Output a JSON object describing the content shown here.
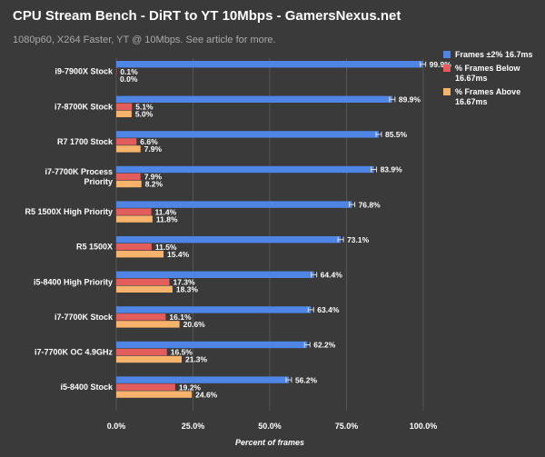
{
  "header": {
    "title": "CPU Stream Bench - DiRT to YT 10Mbps  - GamersNexus.net",
    "subtitle": "1080p60, X264 Faster, YT @ 10Mbps. See article for more."
  },
  "colors": {
    "background": "#3a3a3a",
    "grid": "#545454",
    "series": [
      "#4f86e6",
      "#e35d5d",
      "#f7b36b"
    ],
    "label": "#ffffff"
  },
  "chart_data": {
    "type": "bar",
    "orientation": "horizontal",
    "title": "CPU Stream Bench - DiRT to YT 10Mbps  - GamersNexus.net",
    "subtitle": "1080p60, X264 Faster, YT @ 10Mbps. See article for more.",
    "xlabel": "Percent of frames",
    "ylabel": "",
    "xlim": [
      0,
      100
    ],
    "xticks": [
      0,
      25,
      50,
      75,
      100
    ],
    "xtick_labels": [
      "0.0%",
      "25.0%",
      "50.0%",
      "75.0%",
      "100.0%"
    ],
    "grid": true,
    "legend_position": "right",
    "categories": [
      "i9-7900X Stock",
      "i7-8700K Stock",
      "R7 1700 Stock",
      "i7-7700K Process Priority",
      "R5 1500X High Priority",
      "R5 1500X",
      "i5-8400  High Priority",
      "i7-7700K Stock",
      "i7-7700K OC 4.9GHz",
      "i5-8400 Stock"
    ],
    "category_lines": [
      [
        "i9-7900X Stock"
      ],
      [
        "i7-8700K Stock"
      ],
      [
        "R7 1700 Stock"
      ],
      [
        "i7-7700K Process",
        "Priority"
      ],
      [
        "R5 1500X High Priority"
      ],
      [
        "R5 1500X"
      ],
      [
        "i5-8400  High Priority"
      ],
      [
        "i7-7700K Stock"
      ],
      [
        "i7-7700K OC 4.9GHz"
      ],
      [
        "i5-8400 Stock"
      ]
    ],
    "series": [
      {
        "name": "Frames ±2% 16.7ms",
        "values": [
          99.9,
          89.9,
          85.5,
          83.9,
          76.8,
          73.1,
          64.4,
          63.4,
          62.2,
          56.2
        ],
        "labels": [
          "99.9%",
          "89.9%",
          "85.5%",
          "83.9%",
          "76.8%",
          "73.1%",
          "64.4%",
          "63.4%",
          "62.2%",
          "56.2%"
        ],
        "error_bars": true
      },
      {
        "name": "% Frames Below 16.67ms",
        "values": [
          0.1,
          5.1,
          6.6,
          7.9,
          11.4,
          11.5,
          17.3,
          16.1,
          16.5,
          19.2
        ],
        "labels": [
          "0.1%",
          "5.1%",
          "6.6%",
          "7.9%",
          "11.4%",
          "11.5%",
          "17.3%",
          "16.1%",
          "16.5%",
          "19.2%"
        ]
      },
      {
        "name": "% Frames Above 16.67ms",
        "values": [
          0.0,
          5.0,
          7.9,
          8.2,
          11.8,
          15.4,
          18.3,
          20.6,
          21.3,
          24.6
        ],
        "labels": [
          "0.0%",
          "5.0%",
          "7.9%",
          "8.2%",
          "11.8%",
          "15.4%",
          "18.3%",
          "20.6%",
          "21.3%",
          "24.6%"
        ]
      }
    ]
  },
  "legend": {
    "items": [
      {
        "lines": [
          "Frames ±2% 16.7ms"
        ]
      },
      {
        "lines": [
          "% Frames Below",
          "16.67ms"
        ]
      },
      {
        "lines": [
          "% Frames Above",
          "16.67ms"
        ]
      }
    ]
  }
}
